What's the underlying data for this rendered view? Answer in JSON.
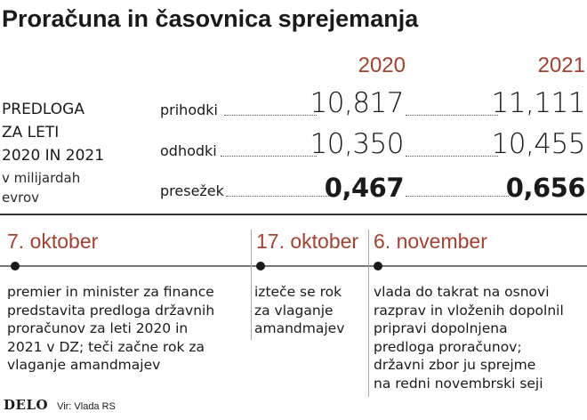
{
  "title": "Proračuna in časovnica sprejemanja",
  "years": [
    "2020",
    "2021"
  ],
  "side": {
    "heading_lines": [
      "PREDLOGA",
      "ZA LETI",
      "2020 IN 2021"
    ],
    "unit_lines": [
      "v milijardah",
      "evrov"
    ]
  },
  "rows": [
    {
      "label": "prihodki",
      "v2020": "10,817",
      "v2021": "11,111"
    },
    {
      "label": "odhodki",
      "v2020": "10,350",
      "v2021": "10,455"
    },
    {
      "label": "presežek",
      "v2020": "0,467",
      "v2021": "0,656"
    }
  ],
  "timeline": [
    {
      "date": "7. oktober",
      "lines": [
        "premier in minister za finance",
        "predstavita predloga državnih",
        "proračunov za leti 2020 in",
        "2021 v DZ; teči začne rok za",
        "vlaganje amandmajev"
      ]
    },
    {
      "date": "17. oktober",
      "lines": [
        "izteče se rok",
        "za vlaganje",
        "amandmajev"
      ]
    },
    {
      "date": "6. november",
      "lines": [
        "vlada do takrat na osnovi",
        "razprav in vloženih dopolnil",
        "pripravi dopolnjena",
        "predloga proračunov;",
        "državni zbor ju sprejme",
        "na redni novembrski seji"
      ]
    }
  ],
  "footer": {
    "logo": "DELO",
    "source": "Vir: Vlada RS"
  },
  "colors": {
    "accent": "#a6402f",
    "text": "#1a1a1a"
  }
}
